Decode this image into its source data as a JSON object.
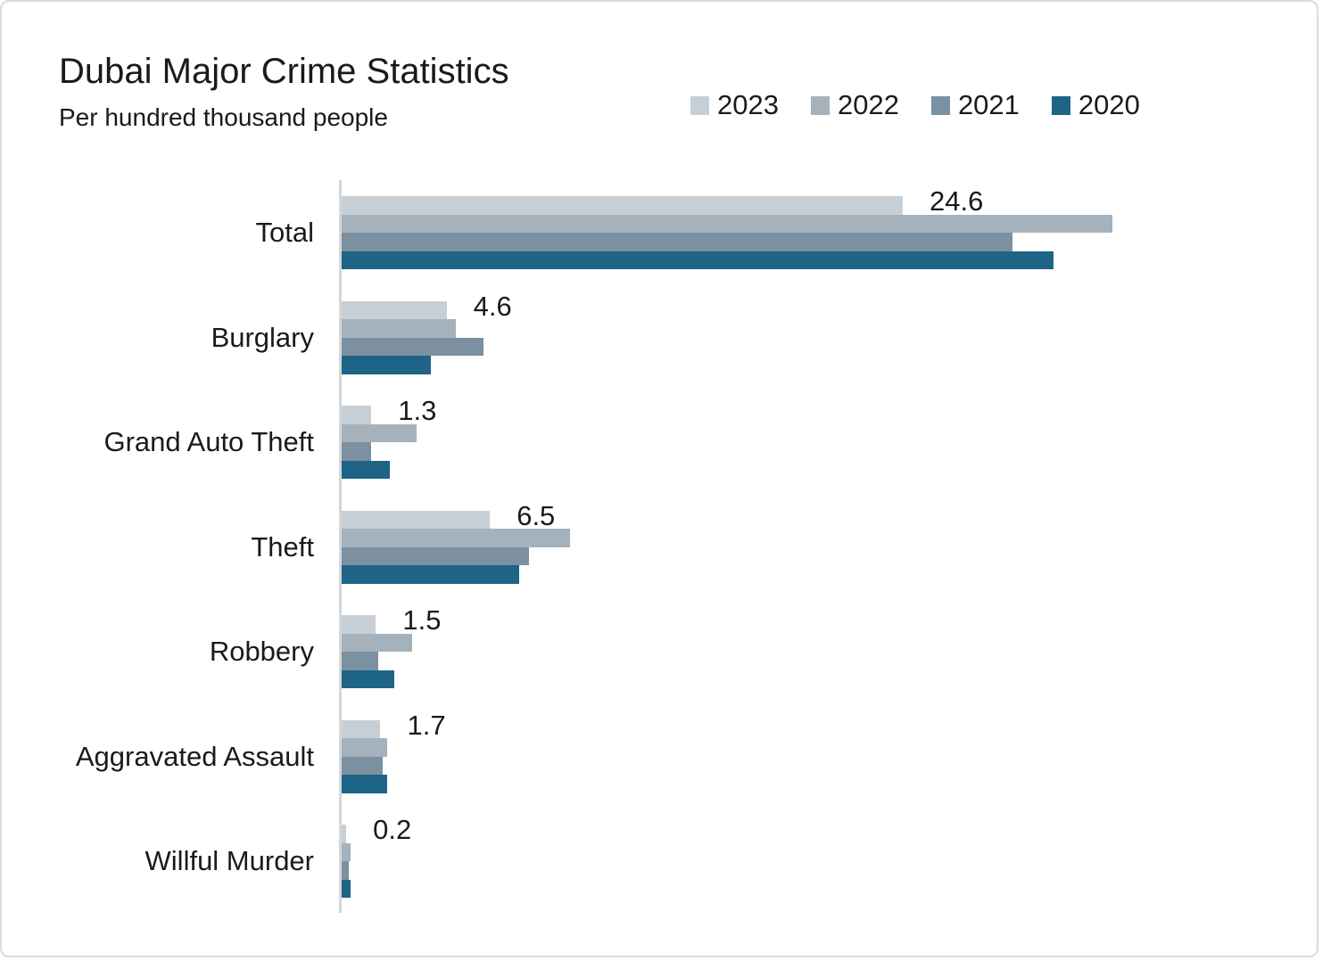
{
  "title": "Dubai Major Crime Statistics",
  "subtitle": "Per hundred thousand people",
  "legend": {
    "items": [
      {
        "label": "2023",
        "color": "#c7cfd6"
      },
      {
        "label": "2022",
        "color": "#a5b2bc"
      },
      {
        "label": "2021",
        "color": "#7b90a0"
      },
      {
        "label": "2020",
        "color": "#1e6486"
      }
    ]
  },
  "chart_data": {
    "type": "bar",
    "orientation": "horizontal",
    "title": "Dubai Major Crime Statistics",
    "subtitle": "Per hundred thousand people",
    "xlabel": "",
    "ylabel": "",
    "xlim": [
      0,
      35
    ],
    "grid": false,
    "legend_position": "top-right",
    "categories": [
      "Total",
      "Burglary",
      "Grand Auto Theft",
      "Theft",
      "Robbery",
      "Aggravated Assault",
      "Willful Murder"
    ],
    "series": [
      {
        "name": "2023",
        "color": "#c7cfd6",
        "values": [
          24.6,
          4.6,
          1.3,
          6.5,
          1.5,
          1.7,
          0.2
        ]
      },
      {
        "name": "2022",
        "color": "#a5b2bc",
        "values": [
          33.8,
          5.0,
          3.3,
          10.0,
          3.1,
          2.0,
          0.4
        ]
      },
      {
        "name": "2021",
        "color": "#7b90a0",
        "values": [
          29.4,
          6.2,
          1.3,
          8.2,
          1.6,
          1.8,
          0.3
        ]
      },
      {
        "name": "2020",
        "color": "#1e6486",
        "values": [
          31.2,
          3.9,
          2.1,
          7.8,
          2.3,
          2.0,
          0.4
        ]
      }
    ],
    "data_labels": {
      "series": "2023",
      "values": [
        "24.6",
        "4.6",
        "1.3",
        "6.5",
        "1.5",
        "1.7",
        "0.2"
      ]
    }
  }
}
